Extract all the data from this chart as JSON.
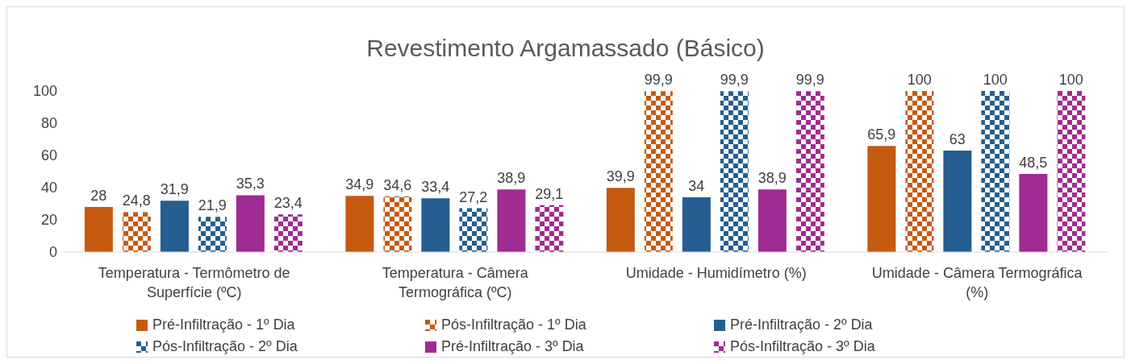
{
  "chart_data": {
    "type": "bar",
    "title": "Revestimento Argamassado (Básico)",
    "categories": [
      "Temperatura - Termômetro de Superfície (ºC)",
      "Temperatura - Câmera Termográfica (ºC)",
      "Umidade - Humidímetro (%)",
      "Umidade - Câmera Termográfica (%)"
    ],
    "series": [
      {
        "name": "Pré-Infiltração - 1º Dia",
        "color": "#c55a11",
        "values": [
          28,
          34.9,
          39.9,
          65.9
        ],
        "value_labels": [
          "28",
          "34,9",
          "39,9",
          "65,9"
        ]
      },
      {
        "name": "Pós-Infiltração - 1º Dia",
        "color": "#c55a11",
        "values": [
          24.8,
          34.6,
          99.9,
          100
        ],
        "value_labels": [
          "24,8",
          "34,6",
          "99,9",
          "100"
        ]
      },
      {
        "name": "Pré-Infiltração - 2º Dia",
        "color": "#255e91",
        "values": [
          31.9,
          33.4,
          34,
          63
        ],
        "value_labels": [
          "31,9",
          "33,4",
          "34",
          "63"
        ]
      },
      {
        "name": "Pós-Infiltração - 2º Dia",
        "color": "#255e91",
        "values": [
          21.9,
          27.2,
          99.9,
          100
        ],
        "value_labels": [
          "21,9",
          "27,2",
          "99,9",
          "100"
        ]
      },
      {
        "name": "Pré-Infiltração - 3º Dia",
        "color": "#a02b93",
        "values": [
          35.3,
          38.9,
          38.9,
          48.5
        ],
        "value_labels": [
          "35,3",
          "38,9",
          "38,9",
          "48,5"
        ]
      },
      {
        "name": "Pós-Infiltração - 3º Dia",
        "color": "#a02b93",
        "values": [
          23.4,
          29.1,
          99.9,
          100
        ],
        "value_labels": [
          "23,4",
          "29,1",
          "99,9",
          "100"
        ]
      }
    ],
    "ylim": [
      0,
      100
    ],
    "yticks": [
      0,
      20,
      40,
      60,
      80,
      100
    ],
    "grid": false,
    "legend": "bottom"
  }
}
